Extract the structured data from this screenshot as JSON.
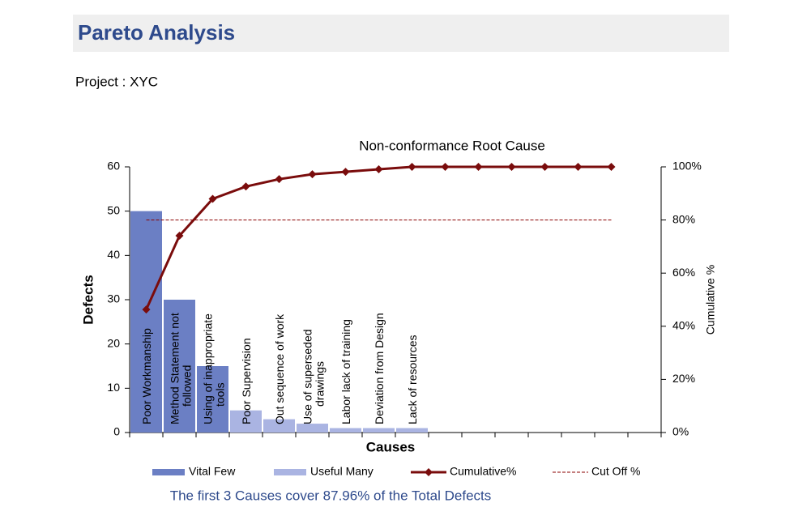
{
  "header": {
    "title": "Pareto Analysis",
    "project": "Project : XYC"
  },
  "chart_data": {
    "type": "bar",
    "title": "Non-conformance Root Cause",
    "x_label": "Causes",
    "y_label": "Defects",
    "y2_label": "Cumulative %",
    "categories": [
      "Poor Workmanship",
      "Method Statement not followed",
      "Using of inappropriate tools",
      "Poor Supervision",
      "Out sequence of work",
      "Use of superseded drawings",
      "Labor lack of training",
      "Deviation from Design",
      "Lack of resources",
      null,
      null,
      null,
      null,
      null,
      null,
      null
    ],
    "series": [
      {
        "name": "Vital Few",
        "type": "bar",
        "color": "#6b7fc4",
        "values": [
          50,
          30,
          15,
          null,
          null,
          null,
          null,
          null,
          null,
          null,
          null,
          null,
          null,
          null,
          null,
          null
        ]
      },
      {
        "name": "Useful Many",
        "type": "bar",
        "color": "#aab4e2",
        "values": [
          null,
          null,
          null,
          5,
          3,
          2,
          1,
          1,
          1,
          null,
          null,
          null,
          null,
          null,
          null,
          null
        ]
      },
      {
        "name": "Cumulative%",
        "type": "line",
        "axis": "y2",
        "color": "#7a0c0c",
        "marker": "diamond",
        "values": [
          46.3,
          74.07,
          87.96,
          92.59,
          95.37,
          97.22,
          98.15,
          99.07,
          100,
          100,
          100,
          100,
          100,
          100,
          100,
          null
        ]
      },
      {
        "name": "Cut Off %",
        "type": "line",
        "axis": "y2",
        "color": "#8b0000",
        "dashed": true,
        "values": [
          80,
          80,
          80,
          80,
          80,
          80,
          80,
          80,
          80,
          80,
          80,
          80,
          80,
          80,
          80,
          null
        ]
      }
    ],
    "ylim": [
      0,
      60
    ],
    "yticks": [
      0,
      10,
      20,
      30,
      40,
      50,
      60
    ],
    "y2lim": [
      0,
      100
    ],
    "y2ticks": [
      {
        "value": 0,
        "label": "0%"
      },
      {
        "value": 20,
        "label": "20%"
      },
      {
        "value": 40,
        "label": "40%"
      },
      {
        "value": 60,
        "label": "60%"
      },
      {
        "value": 80,
        "label": "80%"
      },
      {
        "value": 100,
        "label": "100%"
      }
    ],
    "grid": false,
    "legend": "bottom"
  },
  "footer": "The first 3 Causes cover 87.96% of the Total Defects"
}
